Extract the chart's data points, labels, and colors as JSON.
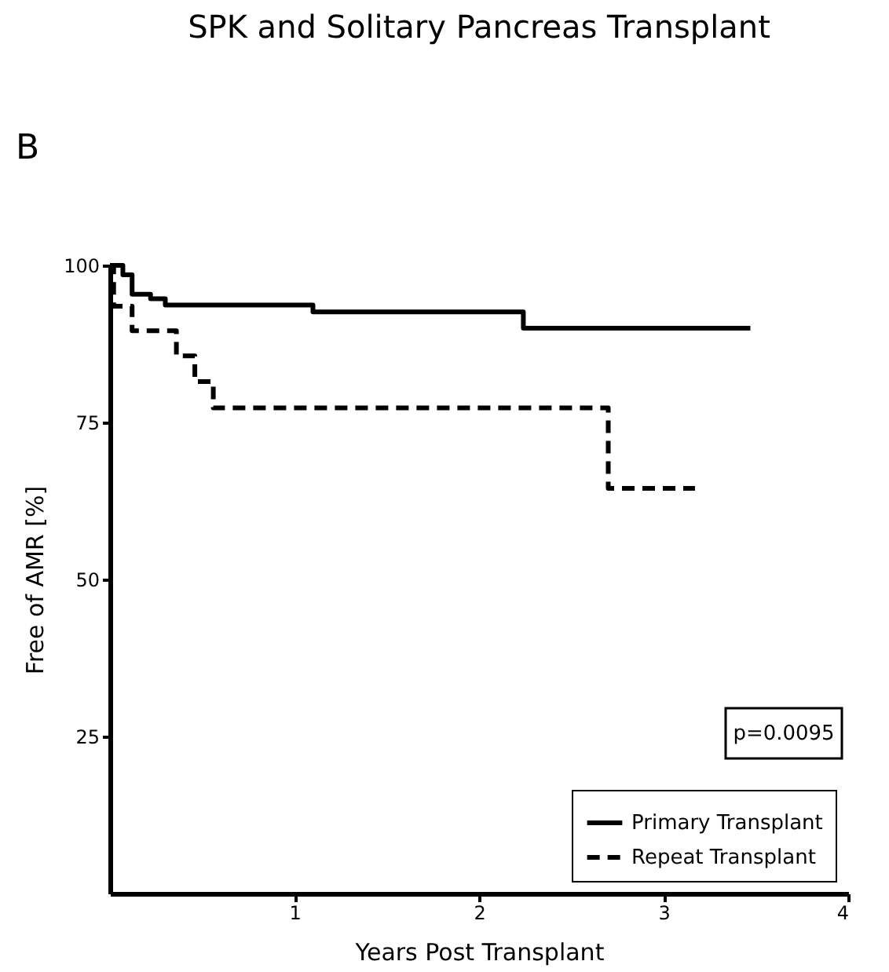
{
  "chart_data": {
    "type": "step",
    "title": "SPK and Solitary Pancreas Transplant",
    "xlabel": "Years Post Transplant",
    "ylabel": "Free of AMR [%]",
    "series": [
      {
        "name": "Primary Transplant",
        "color": "#000000",
        "line_style": "solid",
        "x": [
          0,
          0.07,
          0.12,
          0.22,
          0.3,
          1.1,
          2.24,
          3.47
        ],
        "values": [
          100,
          98.5,
          95.4,
          94.7,
          93.7,
          92.6,
          90.0,
          90.0
        ]
      },
      {
        "name": "Repeat Transplant",
        "color": "#000000",
        "line_style": "dashed",
        "x": [
          0,
          0.02,
          0.12,
          0.36,
          0.46,
          0.56,
          2.7,
          3.17
        ],
        "values": [
          100,
          93.5,
          89.6,
          85.6,
          81.5,
          77.3,
          64.5,
          64.5
        ]
      }
    ],
    "xlim": [
      0,
      4
    ],
    "xticks": [
      1,
      2,
      3,
      4
    ],
    "ylim": [
      0,
      100
    ],
    "yticks": [
      25,
      50,
      75,
      100
    ],
    "grid": false,
    "legend": "bottom right",
    "marker": "none",
    "annotations": [
      "B",
      "p=0.0095"
    ]
  }
}
